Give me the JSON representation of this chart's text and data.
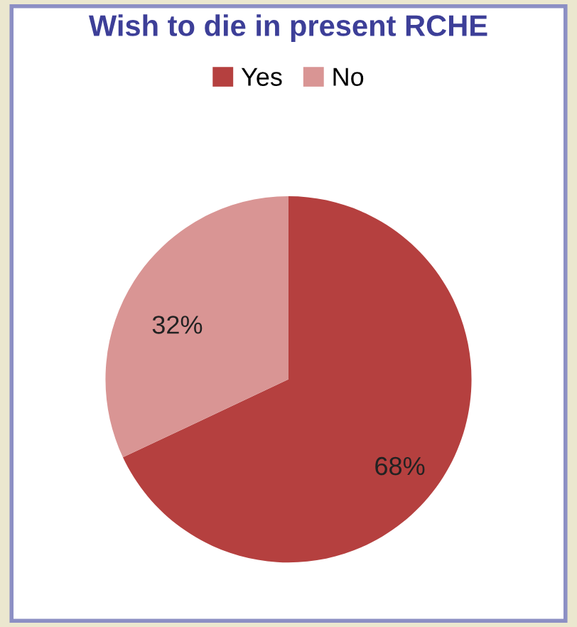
{
  "chart_data": {
    "type": "pie",
    "title": "Wish to die in present RCHE",
    "categories": [
      "Yes",
      "No"
    ],
    "values": [
      68,
      32
    ],
    "value_labels": [
      "68%",
      "32%"
    ],
    "colors": [
      "#b5403f",
      "#d99594"
    ],
    "legend": "top"
  }
}
